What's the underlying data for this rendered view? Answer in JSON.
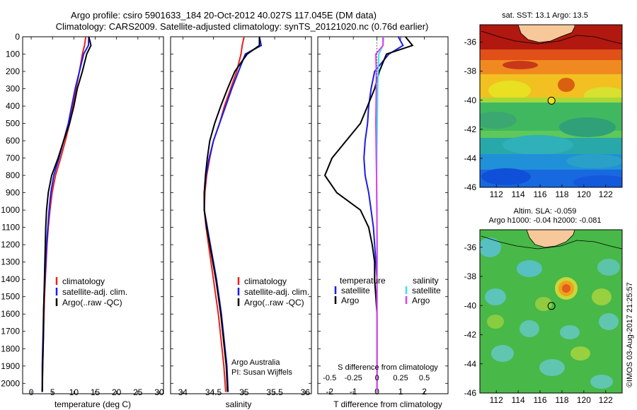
{
  "header": {
    "title_line1": "Argo profile: csiro 5901633_184 20-Oct-2012 40.027S 117.045E (DM data)",
    "title_line2": "Climatology: CARS2009. Satellite-adjusted climatology: synTS_20121020.nc (0.76d earlier)"
  },
  "colors": {
    "climatology": "#e8201c",
    "satellite": "#1c1ce8",
    "argo": "#000000",
    "salinity_satellite": "#33e6f0",
    "salinity_argo": "#e040e8"
  },
  "chart_data": [
    {
      "type": "line",
      "name": "temperature-profile",
      "xlabel": "temperature (deg C)",
      "ylabel": "",
      "xlim": [
        -2,
        31
      ],
      "ylim": [
        2060,
        0
      ],
      "x_ticks": [
        0,
        5,
        10,
        15,
        20,
        25,
        30
      ],
      "y_ticks": [
        0,
        100,
        200,
        300,
        400,
        500,
        600,
        700,
        800,
        900,
        1000,
        1100,
        1200,
        1300,
        1400,
        1500,
        1600,
        1700,
        1800,
        1900,
        2000
      ],
      "legend": {
        "position": "center-left",
        "entries": [
          "climatology",
          "satellite-adj. clim.",
          "Argo(..raw -QC)"
        ]
      },
      "series": [
        {
          "name": "climatology",
          "color": "#e8201c",
          "x": [
            12.8,
            12.5,
            12.0,
            11.3,
            10.5,
            9.8,
            9.0,
            8.0,
            6.9,
            5.7,
            4.9,
            4.4,
            4.0,
            3.7,
            3.5,
            3.3,
            3.1,
            3.0,
            2.9,
            2.8,
            2.7,
            2.6
          ],
          "y": [
            0,
            50,
            100,
            200,
            300,
            400,
            500,
            600,
            700,
            800,
            900,
            1000,
            1100,
            1200,
            1300,
            1400,
            1500,
            1600,
            1700,
            1800,
            1900,
            2050
          ]
        },
        {
          "name": "satellite-adj. clim.",
          "color": "#1c1ce8",
          "x": [
            13.5,
            13.4,
            12.3,
            11.3,
            10.3,
            9.5,
            8.7,
            7.6,
            6.5,
            5.3,
            4.6,
            4.2,
            3.9,
            3.6,
            3.4,
            3.2,
            3.0,
            2.9,
            2.8,
            2.7,
            2.6,
            2.6
          ],
          "y": [
            0,
            50,
            100,
            200,
            300,
            400,
            500,
            600,
            700,
            800,
            900,
            1000,
            1100,
            1200,
            1300,
            1400,
            1500,
            1600,
            1700,
            1800,
            1900,
            2050
          ]
        },
        {
          "name": "Argo(..raw -QC)",
          "color": "#000000",
          "x": [
            13.5,
            14.0,
            13.0,
            12.0,
            10.8,
            10.0,
            9.0,
            7.6,
            6.3,
            4.8,
            4.0,
            3.6,
            3.4,
            3.3,
            3.2,
            3.1,
            3.0,
            2.9,
            2.9,
            2.8,
            2.7,
            2.6
          ],
          "y": [
            0,
            50,
            100,
            200,
            300,
            400,
            500,
            600,
            700,
            800,
            900,
            1000,
            1100,
            1200,
            1300,
            1400,
            1500,
            1600,
            1700,
            1800,
            1900,
            2050
          ]
        }
      ]
    },
    {
      "type": "line",
      "name": "salinity-profile",
      "xlabel": "salinity",
      "ylabel": "",
      "xlim": [
        33.8,
        36.1
      ],
      "ylim": [
        2060,
        0
      ],
      "x_ticks": [
        34,
        34.5,
        35,
        35.5,
        36
      ],
      "legend": {
        "position": "center-left",
        "entries": [
          "climatology",
          "satellite-adj. clim.",
          "Argo(..raw -QC)"
        ]
      },
      "annotation": [
        "Argo Australia",
        "PI: Susan Wijffels"
      ],
      "series": [
        {
          "name": "climatology",
          "color": "#e8201c",
          "x": [
            35.0,
            34.97,
            34.95,
            34.88,
            34.78,
            34.68,
            34.6,
            34.5,
            34.44,
            34.39,
            34.36,
            34.35,
            34.38,
            34.42,
            34.46,
            34.5,
            34.54,
            34.58,
            34.61,
            34.64,
            34.67,
            34.7
          ],
          "y": [
            0,
            50,
            100,
            200,
            300,
            400,
            500,
            600,
            700,
            800,
            900,
            1000,
            1100,
            1200,
            1300,
            1400,
            1500,
            1600,
            1700,
            1800,
            1900,
            2050
          ]
        },
        {
          "name": "satellite-adj. clim.",
          "color": "#1c1ce8",
          "x": [
            35.25,
            35.28,
            35.02,
            34.91,
            34.8,
            34.7,
            34.6,
            34.5,
            34.43,
            34.38,
            34.35,
            34.35,
            34.4,
            34.45,
            34.5,
            34.55,
            34.59,
            34.63,
            34.66,
            34.69,
            34.72,
            34.74
          ],
          "y": [
            0,
            50,
            100,
            200,
            300,
            400,
            500,
            600,
            700,
            800,
            900,
            1000,
            1100,
            1200,
            1300,
            1400,
            1500,
            1600,
            1700,
            1800,
            1900,
            2050
          ]
        },
        {
          "name": "Argo(..raw -QC)",
          "color": "#000000",
          "x": [
            35.25,
            35.25,
            35.05,
            34.85,
            34.73,
            34.62,
            34.52,
            34.44,
            34.4,
            34.37,
            34.35,
            34.35,
            34.39,
            34.44,
            34.49,
            34.54,
            34.58,
            34.62,
            34.65,
            34.68,
            34.71,
            34.73
          ],
          "y": [
            0,
            50,
            100,
            200,
            300,
            400,
            500,
            600,
            700,
            800,
            900,
            1000,
            1100,
            1200,
            1300,
            1400,
            1500,
            1600,
            1700,
            1800,
            1900,
            2050
          ]
        }
      ]
    },
    {
      "type": "line",
      "name": "difference-profile",
      "xlabel": "T difference from climatology",
      "secondary_xlabel": "S difference from climatology",
      "xlim": [
        -2.5,
        3.0
      ],
      "ylim": [
        2060,
        0
      ],
      "x_ticks": [
        -2,
        -1,
        0,
        1,
        2
      ],
      "secondary_x_ticks": [
        -0.5,
        -0.25,
        0,
        0.25,
        0.5
      ],
      "legend": {
        "position": "center",
        "groups": [
          {
            "title": "temperature",
            "entries": [
              "satellite",
              "Argo"
            ]
          },
          {
            "title": "salinity",
            "entries": [
              "satellite",
              "Argo"
            ]
          }
        ]
      },
      "series": [
        {
          "name": "temperature satellite",
          "color": "#1c1ce8",
          "x": [
            0.9,
            1.1,
            0.5,
            -0.1,
            -0.25,
            -0.35,
            -0.4,
            -0.5,
            -0.55,
            -0.5,
            -0.35,
            -0.25,
            -0.15,
            -0.1,
            -0.05,
            0,
            0,
            0,
            0,
            0,
            0,
            0
          ],
          "y": [
            0,
            50,
            100,
            200,
            300,
            400,
            500,
            600,
            700,
            800,
            900,
            1000,
            1100,
            1200,
            1300,
            1400,
            1500,
            1600,
            1700,
            1800,
            1900,
            2050
          ]
        },
        {
          "name": "temperature Argo",
          "color": "#000000",
          "x": [
            1.2,
            1.5,
            0.4,
            0.1,
            -0.1,
            -0.4,
            -0.7,
            -1.3,
            -1.9,
            -2.2,
            -1.7,
            -0.7,
            -0.35,
            -0.2,
            -0.1,
            -0.1,
            -0.05,
            0,
            0,
            0,
            0,
            0
          ],
          "y": [
            0,
            50,
            100,
            200,
            300,
            400,
            500,
            600,
            700,
            800,
            900,
            1000,
            1100,
            1200,
            1300,
            1400,
            1500,
            1600,
            1700,
            1800,
            1900,
            2050
          ]
        },
        {
          "name": "salinity satellite",
          "color": "#33e6f0",
          "x": [
            0.28,
            0.25,
            0.08,
            0.05,
            0.03,
            0.02,
            0.01,
            0,
            -0.01,
            -0.02,
            -0.02,
            -0.01,
            0,
            0.01,
            0.01,
            0,
            0,
            0,
            0,
            0,
            0,
            0
          ],
          "y": [
            0,
            50,
            100,
            200,
            300,
            400,
            500,
            600,
            700,
            800,
            900,
            1000,
            1100,
            1200,
            1300,
            1400,
            1500,
            1600,
            1700,
            1800,
            1900,
            2050
          ]
        },
        {
          "name": "salinity Argo",
          "color": "#e040e8",
          "x": [
            0.25,
            0.26,
            -0.05,
            -0.03,
            -0.03,
            -0.04,
            -0.05,
            -0.04,
            -0.03,
            -0.02,
            -0.01,
            0,
            0,
            0,
            0,
            0,
            0,
            0,
            0,
            0,
            0,
            0
          ],
          "y": [
            0,
            50,
            100,
            200,
            300,
            400,
            500,
            600,
            700,
            800,
            900,
            1000,
            1100,
            1200,
            1300,
            1400,
            1500,
            1600,
            1700,
            1800,
            1900,
            2050
          ]
        }
      ]
    },
    {
      "type": "heatmap",
      "name": "sst-map",
      "title": "sat. SST: 13.1 Argo: 13.5",
      "xlim": [
        110.5,
        123.5
      ],
      "ylim": [
        -46,
        -34.8
      ],
      "x_ticks": [
        112,
        114,
        116,
        118,
        120,
        122
      ],
      "y_ticks": [
        -36,
        -38,
        -40,
        -42,
        -44,
        -46
      ],
      "marker": {
        "x": 117.045,
        "y": -40.027
      }
    },
    {
      "type": "heatmap",
      "name": "sla-map",
      "title": "Altim. SLA: -0.059",
      "subtitle": "Argo h1000: -0.04 h2000: -0.081",
      "xlim": [
        110.5,
        123.5
      ],
      "ylim": [
        -46,
        -34.8
      ],
      "x_ticks": [
        112,
        114,
        116,
        118,
        120,
        122
      ],
      "y_ticks": [
        -36,
        -38,
        -40,
        -42,
        -44,
        -46
      ],
      "marker": {
        "x": 117.045,
        "y": -40.027
      }
    }
  ],
  "footer": {
    "credit": "©IMOS 03-Aug-2017 21:25:57"
  }
}
